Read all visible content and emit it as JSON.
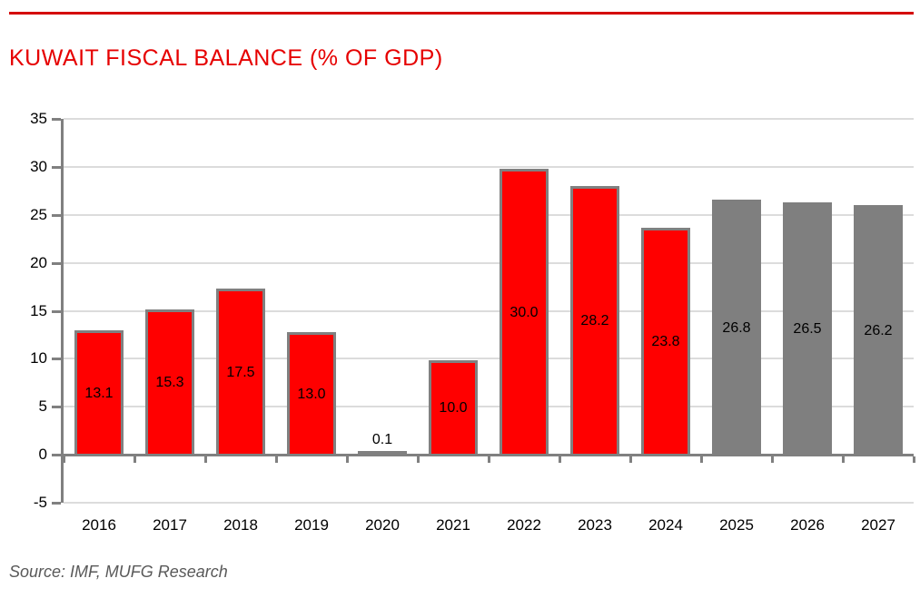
{
  "header": {
    "title": "KUWAIT FISCAL BALANCE (% OF GDP)",
    "title_color": "#E60000",
    "rule_color": "#D40000"
  },
  "footer": {
    "source": "Source: IMF, MUFG Research"
  },
  "chart_data": {
    "type": "bar",
    "title": "KUWAIT FISCAL BALANCE (% OF GDP)",
    "categories": [
      "2016",
      "2017",
      "2018",
      "2019",
      "2020",
      "2021",
      "2022",
      "2023",
      "2024",
      "2025",
      "2026",
      "2027"
    ],
    "values": [
      13.1,
      15.3,
      17.5,
      13.0,
      0.1,
      10.0,
      30.0,
      28.2,
      23.8,
      26.8,
      26.5,
      26.2
    ],
    "value_labels": [
      "13.1",
      "15.3",
      "17.5",
      "13.0",
      "0.1",
      "10.0",
      "30.0",
      "28.2",
      "23.8",
      "26.8",
      "26.5",
      "26.2"
    ],
    "bar_fill": [
      "#FF0000",
      "#FF0000",
      "#FF0000",
      "#FF0000",
      "#FF0000",
      "#FF0000",
      "#FF0000",
      "#FF0000",
      "#FF0000",
      "#7F7F7F",
      "#7F7F7F",
      "#7F7F7F"
    ],
    "bar_border": [
      "#808080",
      "#808080",
      "#808080",
      "#808080",
      "#808080",
      "#808080",
      "#808080",
      "#808080",
      "#808080",
      "#7F7F7F",
      "#7F7F7F",
      "#7F7F7F"
    ],
    "xlabel": "",
    "ylabel": "",
    "ylim": [
      -5,
      35
    ],
    "yticks": [
      35,
      30,
      25,
      20,
      15,
      10,
      5,
      0,
      -5
    ],
    "grid": true,
    "legend_position": "none",
    "colors": {
      "gridline": "#DCDCDC",
      "axis": "#808080",
      "value_label": "#000000",
      "tick_label": "#000000"
    }
  }
}
